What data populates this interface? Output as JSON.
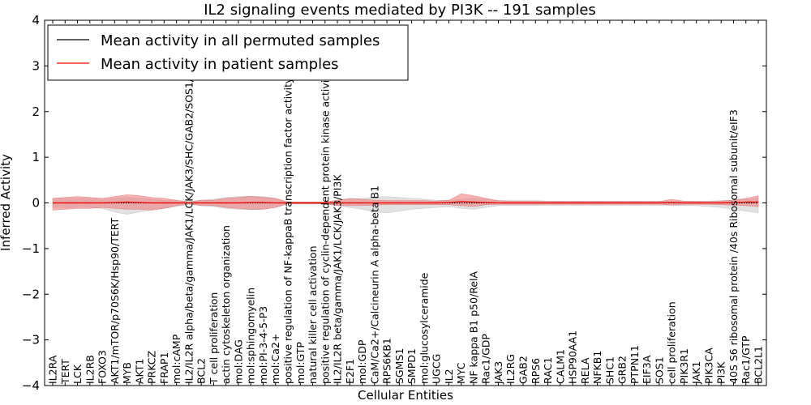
{
  "chart_data": {
    "type": "line",
    "title": "IL2 signaling events mediated by PI3K -- 191 samples",
    "xlabel": "Cellular Entities",
    "ylabel": "Inferred Activity",
    "ylim": [
      -4,
      4
    ],
    "yticks": [
      -4,
      -3,
      -2,
      -1,
      0,
      1,
      2,
      3,
      4
    ],
    "grid": false,
    "legend_placement": "top-left",
    "colors": {
      "permuted": "#000000",
      "patient": "#ff0000",
      "patient_band": "#f08080",
      "permuted_band": "#c8c8c8"
    },
    "categories": [
      "IL2RA",
      "TERT",
      "LCK",
      "IL2RB",
      "FOXO3",
      "AKT1/mTOR/p70S6K/Hsp90/TERT",
      "MYB",
      "AKT1",
      "PRKCZ",
      "FRAP1",
      "mol:cAMP",
      "IL2/IL2R alpha/beta/gamma/JAK1/LCK/JAK3/SHC/GAB2/SOS1/SHP2",
      "BCL2",
      "T cell proliferation",
      "actin cytoskeleton organization",
      "mol:DAG",
      "mol:sphingomyelin",
      "mol:PI-3-4-5-P3",
      "mol:Ca2+",
      "positive regulation of NF-kappaB transcription factor activity",
      "mol:GTP",
      "natural killer cell activation",
      "positive regulation of cyclin-dependent protein kinase activity",
      "IL2/IL2R beta/gamma/JAK1/LCK/JAK3/PI3K",
      "E2F1",
      "mol:GDP",
      "CaM/Ca2+/Calcineurin A alpha-beta B1",
      "RPS6KB1",
      "SGMS1",
      "SMPD1",
      "mol:glucosylceramide",
      "UGCG",
      "IL2",
      "MYC",
      "NF kappa B1 p50/RelA",
      "Rac1/GDP",
      "JAK3",
      "IL2RG",
      "GAB2",
      "RPS6",
      "RAC1",
      "CALM1",
      "HSP90AA1",
      "RELA",
      "NFKB1",
      "SHC1",
      "GRB2",
      "PTPN11",
      "EIF3A",
      "SOS1",
      "cell proliferation",
      "PIK3R1",
      "JAK1",
      "PIK3CA",
      "PI3K",
      "40S S6 ribosomal protein /40s Ribosomal subunit/eIF3",
      "Rac1/GTP",
      "BCL2L1"
    ],
    "series": [
      {
        "name": "Mean activity in all permuted samples",
        "values": [
          0,
          0,
          0,
          0,
          0,
          0,
          0,
          0,
          0,
          0,
          0,
          0,
          0,
          0,
          0,
          0,
          0,
          0,
          0,
          0,
          0,
          0,
          0,
          0,
          0,
          0,
          0,
          0,
          0,
          0,
          0,
          0,
          0,
          0,
          0,
          0,
          0,
          0,
          0,
          0,
          0,
          0,
          0,
          0,
          0,
          0,
          0,
          0,
          0,
          0,
          0,
          0,
          0,
          0,
          0,
          0,
          0,
          0
        ],
        "band_upper": [
          0.1,
          0.1,
          0.1,
          0.1,
          0.08,
          0.1,
          0.12,
          0.1,
          0.08,
          0.06,
          0.05,
          0.03,
          0.06,
          0.08,
          0.12,
          0.14,
          0.15,
          0.14,
          0.1,
          0.02,
          0.02,
          0.02,
          0.02,
          0.06,
          0.08,
          0.1,
          0.12,
          0.14,
          0.12,
          0.1,
          0.08,
          0.06,
          0.05,
          0.08,
          0.1,
          0.08,
          0.05,
          0.05,
          0.05,
          0.05,
          0.04,
          0.04,
          0.04,
          0.04,
          0.04,
          0.04,
          0.04,
          0.04,
          0.04,
          0.04,
          0.04,
          0.04,
          0.04,
          0.04,
          0.05,
          0.06,
          0.08,
          0.1
        ],
        "band_lower": [
          -0.1,
          -0.1,
          -0.1,
          -0.1,
          -0.12,
          -0.2,
          -0.25,
          -0.2,
          -0.15,
          -0.12,
          -0.08,
          -0.03,
          -0.06,
          -0.08,
          -0.12,
          -0.14,
          -0.15,
          -0.14,
          -0.1,
          -0.02,
          -0.02,
          -0.02,
          -0.02,
          -0.06,
          -0.1,
          -0.14,
          -0.2,
          -0.22,
          -0.18,
          -0.14,
          -0.12,
          -0.1,
          -0.08,
          -0.12,
          -0.14,
          -0.1,
          -0.06,
          -0.06,
          -0.06,
          -0.06,
          -0.05,
          -0.05,
          -0.05,
          -0.05,
          -0.05,
          -0.05,
          -0.05,
          -0.05,
          -0.05,
          -0.05,
          -0.05,
          -0.06,
          -0.06,
          -0.08,
          -0.1,
          -0.14,
          -0.18,
          -0.22
        ]
      },
      {
        "name": "Mean activity in patient samples",
        "values": [
          0,
          0,
          0,
          0,
          0,
          0.01,
          0.02,
          0.01,
          0,
          0,
          0,
          0,
          0,
          0,
          0,
          0,
          0.01,
          0.01,
          0,
          0,
          0,
          0,
          0,
          0,
          0,
          0,
          0,
          0,
          0,
          0,
          0,
          0,
          0.01,
          0.03,
          0.02,
          0.01,
          0,
          0,
          0,
          0,
          0,
          0,
          0,
          0,
          0,
          0,
          0,
          0,
          0,
          0,
          0.01,
          0,
          0,
          0,
          0,
          0.01,
          0.02,
          0.02
        ],
        "band_upper": [
          0.1,
          0.12,
          0.14,
          0.12,
          0.1,
          0.14,
          0.18,
          0.16,
          0.12,
          0.1,
          0.06,
          0.02,
          0.06,
          0.06,
          0.1,
          0.12,
          0.14,
          0.12,
          0.1,
          0.02,
          0.02,
          0.02,
          0.02,
          0.06,
          0.1,
          0.08,
          0.06,
          0.05,
          0.05,
          0.05,
          0.05,
          0.04,
          0.06,
          0.2,
          0.16,
          0.1,
          0.05,
          0.04,
          0.04,
          0.04,
          0.03,
          0.03,
          0.03,
          0.03,
          0.03,
          0.03,
          0.03,
          0.03,
          0.03,
          0.03,
          0.08,
          0.04,
          0.03,
          0.03,
          0.04,
          0.06,
          0.1,
          0.16
        ],
        "band_lower": [
          -0.16,
          -0.14,
          -0.12,
          -0.12,
          -0.1,
          -0.12,
          -0.14,
          -0.14,
          -0.16,
          -0.12,
          -0.06,
          -0.02,
          -0.06,
          -0.06,
          -0.1,
          -0.12,
          -0.14,
          -0.14,
          -0.1,
          -0.02,
          -0.02,
          -0.02,
          -0.02,
          -0.06,
          -0.06,
          -0.06,
          -0.05,
          -0.04,
          -0.04,
          -0.04,
          -0.04,
          -0.04,
          -0.04,
          -0.06,
          -0.08,
          -0.04,
          -0.03,
          -0.03,
          -0.03,
          -0.03,
          -0.03,
          -0.03,
          -0.03,
          -0.03,
          -0.03,
          -0.03,
          -0.03,
          -0.03,
          -0.03,
          -0.03,
          -0.05,
          -0.03,
          -0.03,
          -0.03,
          -0.04,
          -0.05,
          -0.06,
          -0.08
        ]
      }
    ]
  }
}
